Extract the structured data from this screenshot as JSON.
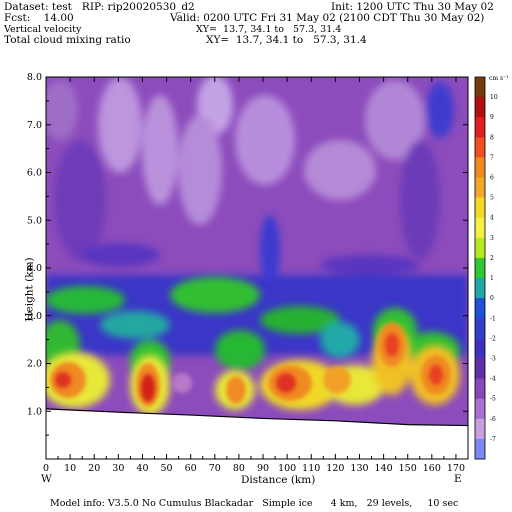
{
  "header": {
    "dataset_line": "Dataset: test   RIP: rip20020530_d2",
    "init_line": "Init: 1200 UTC Thu 30 May 02",
    "fcst_line": "Fcst:    14.00",
    "valid_line": "Valid: 0200 UTC Fri 31 May 02 (2100 CDT Thu 30 May 02)",
    "field1_line": "Vertical velocity",
    "xy1_line": "XY=  13.7, 34.1 to   57.3, 31.4",
    "field2_line": "Total cloud mixing ratio",
    "xy2_line": "XY=  13.7, 34.1 to   57.3, 31.4"
  },
  "footer": {
    "model_info": "Model info: V3.5.0 No Cumulus Blackadar   Simple ice      4 km,   29 levels,     10 sec"
  },
  "colors": {
    "background_high": "#b888d8",
    "background_mid": "#8a48b8",
    "background_low": "#4a2ad0",
    "cloud_green": "#28c828",
    "cloud_yellow": "#f4e628",
    "cloud_orange": "#f08a20",
    "cloud_red": "#e02820",
    "terrain": "#ffffff"
  },
  "chart_data": {
    "type": "heatmap",
    "title": "Vertical velocity / Total cloud mixing ratio",
    "xlabel": "Distance (km)",
    "ylabel": "Height (km)",
    "xlim": [
      0,
      175
    ],
    "ylim": [
      0,
      8
    ],
    "x_ticks": [
      0,
      10,
      20,
      30,
      40,
      50,
      60,
      70,
      80,
      90,
      100,
      110,
      120,
      130,
      140,
      150,
      160,
      170
    ],
    "x_tick_labels": [
      "0",
      "10",
      "20",
      "30",
      "40",
      "50",
      "60",
      "70",
      "80",
      "90",
      "100",
      "110",
      "120",
      "130",
      "140",
      "150",
      "160",
      "170"
    ],
    "y_ticks": [
      1,
      2,
      3,
      4,
      5,
      6,
      7,
      8
    ],
    "y_tick_labels": [
      "1.0",
      "2.0",
      "3.0",
      "4.0",
      "5.0",
      "6.0",
      "7.0",
      "8.0"
    ],
    "x_end_labels": {
      "left": "W",
      "right": "E"
    },
    "terrain_height_km": [
      [
        0,
        1.05
      ],
      [
        30,
        0.98
      ],
      [
        60,
        0.92
      ],
      [
        90,
        0.85
      ],
      [
        120,
        0.8
      ],
      [
        150,
        0.72
      ],
      [
        175,
        0.7
      ]
    ],
    "colorbar": {
      "unit": "cm s⁻¹",
      "labels": [
        "10",
        "9",
        "8",
        "7",
        "6",
        "5",
        "4",
        "3",
        "2",
        "1",
        "0",
        "-1",
        "-2",
        "-3",
        "-4",
        "-5",
        "-6",
        "-7"
      ],
      "colors": [
        "#7a3a10",
        "#b01010",
        "#e02020",
        "#f05020",
        "#f08a20",
        "#f4a828",
        "#f4d828",
        "#f4f048",
        "#b8e820",
        "#30c830",
        "#20a8a8",
        "#2050d8",
        "#3040c8",
        "#4030c0",
        "#6030a8",
        "#8848b8",
        "#a870d0",
        "#c8a0e0",
        "#7a8af0"
      ]
    },
    "cloud_cores": [
      {
        "x": 7,
        "z": 1.6,
        "level": "red"
      },
      {
        "x": 43,
        "z": 1.5,
        "level": "red"
      },
      {
        "x": 57,
        "z": 1.6,
        "level": "purple"
      },
      {
        "x": 77,
        "z": 1.5,
        "level": "orange"
      },
      {
        "x": 98,
        "z": 1.6,
        "level": "red"
      },
      {
        "x": 141,
        "z": 2.2,
        "level": "red"
      },
      {
        "x": 164,
        "z": 1.8,
        "level": "red"
      }
    ]
  }
}
